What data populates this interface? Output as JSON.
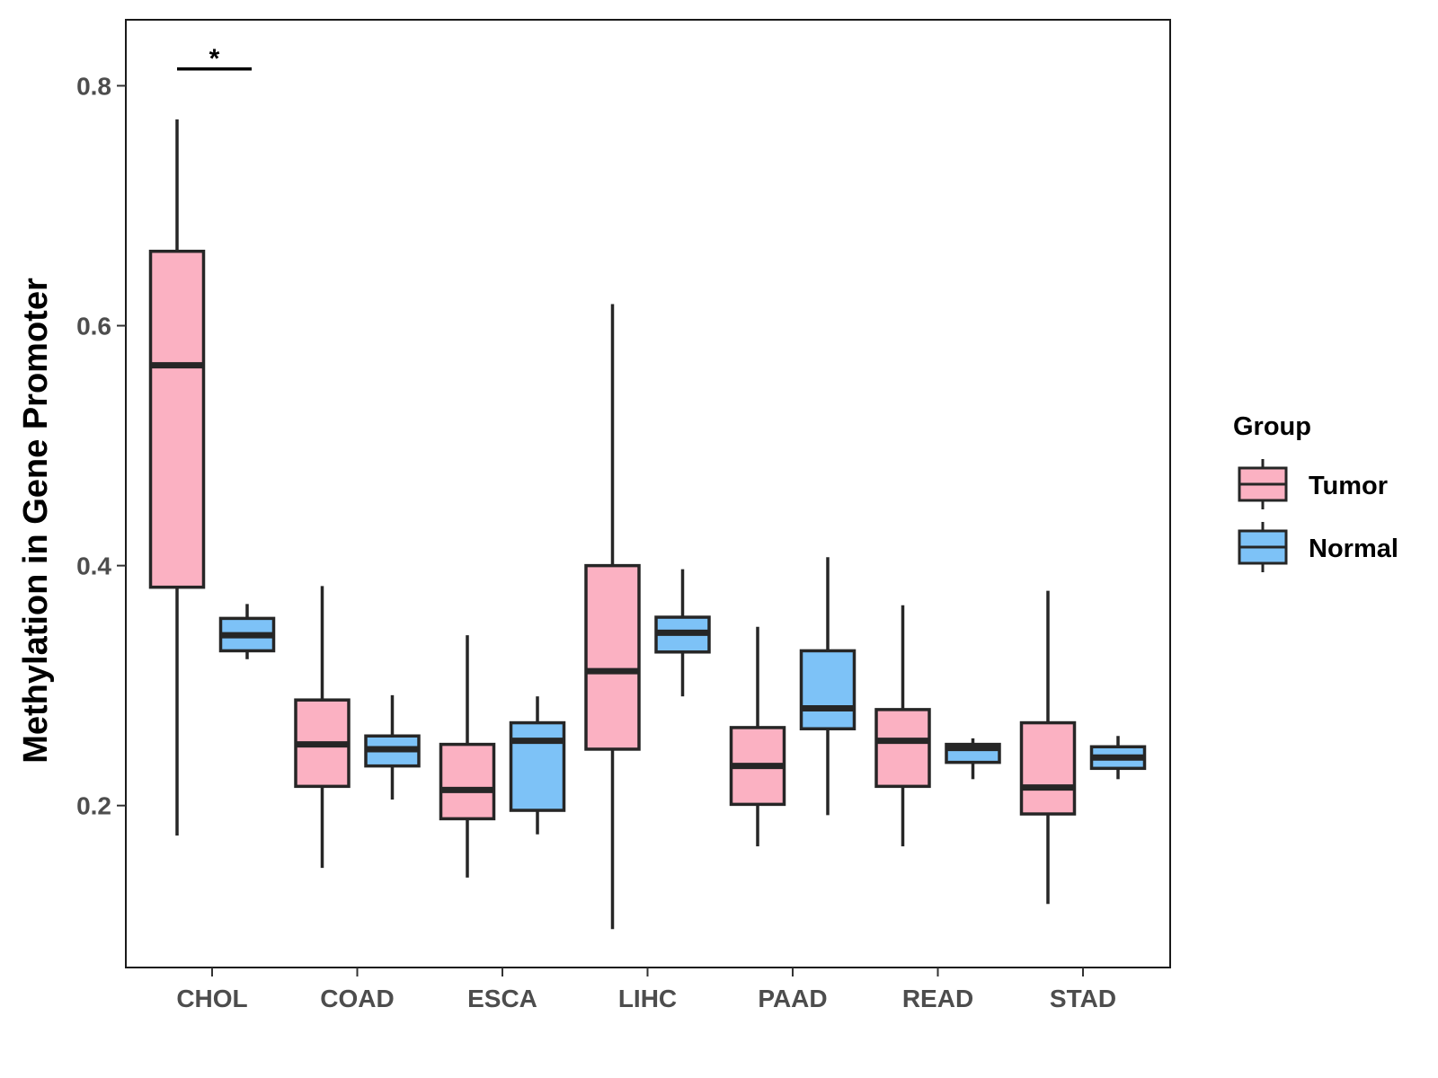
{
  "chart_data": {
    "type": "boxplot",
    "title": "",
    "xlabel": "",
    "ylabel": "Methylation in Gene Promoter",
    "ylim": [
      0.065,
      0.855
    ],
    "yticks": [
      0.2,
      0.4,
      0.6,
      0.8
    ],
    "ytick_labels": [
      "0.2",
      "0.4",
      "0.6",
      "0.8"
    ],
    "categories": [
      "CHOL",
      "COAD",
      "ESCA",
      "LIHC",
      "PAAD",
      "READ",
      "STAD"
    ],
    "legend": {
      "title": "Group",
      "position": "right",
      "entries": [
        {
          "name": "Tumor",
          "color": "#FBB1C2"
        },
        {
          "name": "Normal",
          "color": "#7DC2F7"
        }
      ]
    },
    "series": [
      {
        "name": "Tumor",
        "color": "#FBB1C2",
        "boxes": [
          {
            "category": "CHOL",
            "min": 0.175,
            "q1": 0.382,
            "median": 0.567,
            "q3": 0.662,
            "max": 0.772
          },
          {
            "category": "COAD",
            "min": 0.148,
            "q1": 0.216,
            "median": 0.251,
            "q3": 0.288,
            "max": 0.383
          },
          {
            "category": "ESCA",
            "min": 0.14,
            "q1": 0.189,
            "median": 0.213,
            "q3": 0.251,
            "max": 0.342
          },
          {
            "category": "LIHC",
            "min": 0.097,
            "q1": 0.247,
            "median": 0.312,
            "q3": 0.4,
            "max": 0.618
          },
          {
            "category": "PAAD",
            "min": 0.166,
            "q1": 0.201,
            "median": 0.233,
            "q3": 0.265,
            "max": 0.349
          },
          {
            "category": "READ",
            "min": 0.166,
            "q1": 0.216,
            "median": 0.254,
            "q3": 0.28,
            "max": 0.367
          },
          {
            "category": "STAD",
            "min": 0.118,
            "q1": 0.193,
            "median": 0.215,
            "q3": 0.269,
            "max": 0.379
          }
        ]
      },
      {
        "name": "Normal",
        "color": "#7DC2F7",
        "boxes": [
          {
            "category": "CHOL",
            "min": 0.322,
            "q1": 0.329,
            "median": 0.342,
            "q3": 0.356,
            "max": 0.368
          },
          {
            "category": "COAD",
            "min": 0.205,
            "q1": 0.233,
            "median": 0.247,
            "q3": 0.258,
            "max": 0.292
          },
          {
            "category": "ESCA",
            "min": 0.176,
            "q1": 0.196,
            "median": 0.254,
            "q3": 0.269,
            "max": 0.291
          },
          {
            "category": "LIHC",
            "min": 0.291,
            "q1": 0.328,
            "median": 0.344,
            "q3": 0.357,
            "max": 0.397
          },
          {
            "category": "PAAD",
            "min": 0.192,
            "q1": 0.264,
            "median": 0.281,
            "q3": 0.329,
            "max": 0.407
          },
          {
            "category": "READ",
            "min": 0.222,
            "q1": 0.236,
            "median": 0.248,
            "q3": 0.251,
            "max": 0.256
          },
          {
            "category": "STAD",
            "min": 0.222,
            "q1": 0.231,
            "median": 0.24,
            "q3": 0.249,
            "max": 0.258
          }
        ]
      }
    ],
    "annotations": [
      {
        "category": "CHOL",
        "text": "*",
        "y": 0.814
      }
    ]
  }
}
